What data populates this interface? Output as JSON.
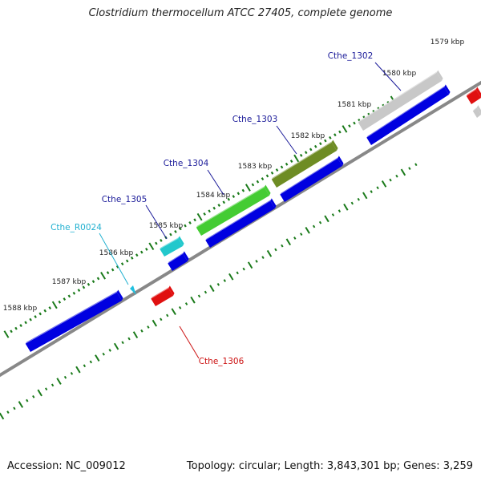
{
  "title": "Clostridium thermocellum ATCC 27405, complete genome",
  "footer": {
    "accession": "Accession: NC_009012",
    "summary": "Topology: circular; Length: 3,843,301 bp; Genes: 3,259"
  },
  "colors": {
    "backbone": "#888888",
    "tick": "#1a7a1a",
    "cds_forward": "#0000e0",
    "rrna": "#20c0e0",
    "rna_label": "#20b0d0",
    "reverse_gene": "#e01010",
    "gene_label": "#1a1a99",
    "reverse_label": "#cc1111"
  },
  "ticks": [
    {
      "label": "1579 kbp"
    },
    {
      "label": "1580 kbp"
    },
    {
      "label": "1581 kbp"
    },
    {
      "label": "1582 kbp"
    },
    {
      "label": "1583 kbp"
    },
    {
      "label": "1584 kbp"
    },
    {
      "label": "1585 kbp"
    },
    {
      "label": "1586 kbp"
    },
    {
      "label": "1587 kbp"
    },
    {
      "label": "1588 kbp"
    }
  ],
  "genes": [
    {
      "label": "Cthe_1302",
      "color": "#c8c8c8"
    },
    {
      "label": "Cthe_1303",
      "color": "#6e8c24"
    },
    {
      "label": "Cthe_1304",
      "color": "#44cc33"
    },
    {
      "label": "Cthe_1305",
      "color": "#22c8cc"
    },
    {
      "label": "Cthe_R0024",
      "color": "#20c0e0"
    },
    {
      "label": "Cthe_1306",
      "color": "#e01010"
    }
  ]
}
